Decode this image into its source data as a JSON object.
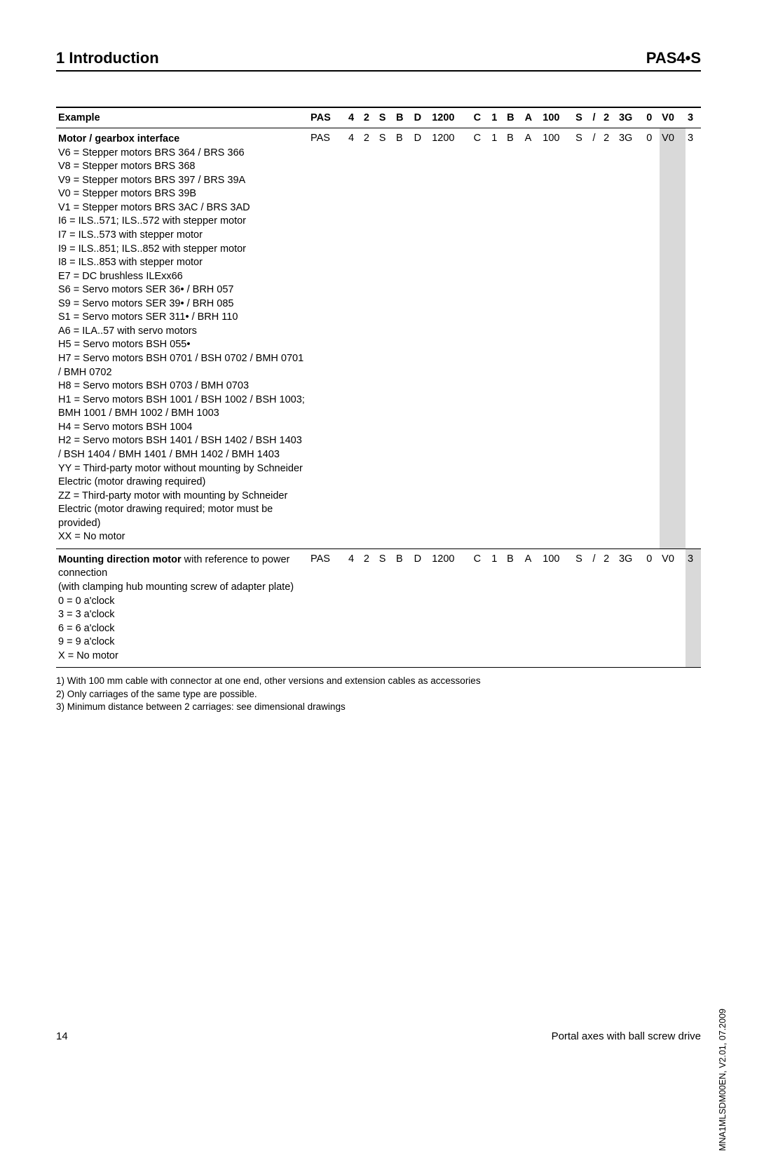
{
  "header": {
    "left": "1 Introduction",
    "right": "PAS4•S"
  },
  "table": {
    "headers": [
      "Example",
      "PAS",
      "4",
      "2",
      "S",
      "B",
      "D",
      "1200",
      "C",
      "1",
      "B",
      "A",
      "100",
      "S",
      "/",
      "2",
      "3G",
      "0",
      "V0",
      "3"
    ],
    "rows": [
      {
        "desc_title": "Motor / gearbox interface",
        "desc_lines": [
          "V6 = Stepper motors BRS 364 / BRS 366",
          "V8 = Stepper motors BRS 368",
          "V9 = Stepper motors BRS 397 / BRS 39A",
          "V0 = Stepper motors BRS 39B",
          "V1 = Stepper motors BRS 3AC / BRS 3AD",
          "I6 = ILS..571; ILS..572 with stepper motor",
          "I7 = ILS..573 with stepper motor",
          "I9 = ILS..851; ILS..852 with stepper motor",
          "I8 = ILS..853 with stepper motor",
          "E7 = DC brushless ILExx66",
          "S6 = Servo motors SER 36• / BRH 057",
          "S9 = Servo motors SER 39• / BRH 085",
          "S1 = Servo motors SER 311• / BRH 110",
          "A6 = ILA..57 with servo motors",
          "H5 = Servo motors BSH 055•",
          "H7 = Servo motors BSH 0701 / BSH 0702 / BMH 0701 / BMH 0702",
          "H8 = Servo motors BSH 0703 / BMH 0703",
          "H1 = Servo motors BSH 1001 / BSH 1002 / BSH 1003; BMH 1001 / BMH 1002 / BMH 1003",
          "H4 = Servo motors BSH 1004",
          "H2 = Servo motors BSH 1401 / BSH 1402 / BSH 1403 / BSH 1404 / BMH 1401 / BMH 1402 / BMH 1403",
          "YY = Third-party motor without mounting by Schneider Electric (motor drawing required)",
          "ZZ = Third-party motor with mounting by Schneider Electric (motor drawing required; motor must be provided)",
          "XX = No motor"
        ],
        "cells": [
          "PAS",
          "4",
          "2",
          "S",
          "B",
          "D",
          "1200",
          "C",
          "1",
          "B",
          "A",
          "100",
          "S",
          "/",
          "2",
          "3G",
          "0",
          "V0",
          "3"
        ],
        "highlight_index": 17
      },
      {
        "desc_title": "Mounting direction motor",
        "desc_title_suffix": " with reference to power connection",
        "desc_lines": [
          "(with clamping hub mounting screw of adapter plate)",
          "0 = 0 a'clock",
          "3 = 3 a'clock",
          "6 = 6 a'clock",
          "9 = 9 a'clock",
          "X = No motor"
        ],
        "cells": [
          "PAS",
          "4",
          "2",
          "S",
          "B",
          "D",
          "1200",
          "C",
          "1",
          "B",
          "A",
          "100",
          "S",
          "/",
          "2",
          "3G",
          "0",
          "V0",
          "3"
        ],
        "highlight_index": 18
      }
    ]
  },
  "footnotes": [
    "1) With 100 mm cable with connector at one end, other versions and extension cables as accessories",
    "2)  Only carriages of the same type are possible.",
    "3) Minimum distance between 2 carriages: see dimensional drawings"
  ],
  "footer": {
    "page": "14",
    "title": "Portal axes with ball screw drive"
  },
  "side": "MNA1MLSDM00EN, V2.01, 07.2009"
}
